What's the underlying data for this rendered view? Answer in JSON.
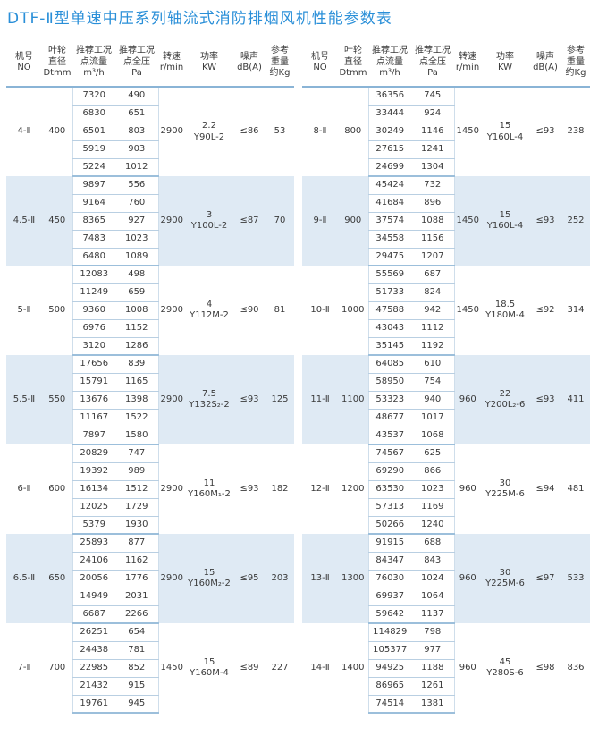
{
  "title": "DTF-Ⅱ型单速中压系列轴流式消防排烟风机性能参数表",
  "headers": {
    "model": "机号\nNO",
    "diameter": "叶轮\n直径\nDtmm",
    "flow": "推荐工况\n点流量\nm³/h",
    "pressure": "推荐工况\n点全压\nPa",
    "speed": "转速\nr/min",
    "power": "功率\nKW",
    "noise": "噪声\ndB(A)",
    "weight": "参考\n重量\n约Kg"
  },
  "left_groups": [
    {
      "model": "4-Ⅱ",
      "diameter": "400",
      "speed": "2900",
      "power": "2.2\nY90L-2",
      "noise": "≤86",
      "weight": "53",
      "rows": [
        [
          "7320",
          "490"
        ],
        [
          "6830",
          "651"
        ],
        [
          "6501",
          "803"
        ],
        [
          "5919",
          "903"
        ],
        [
          "5224",
          "1012"
        ]
      ]
    },
    {
      "model": "4.5-Ⅱ",
      "diameter": "450",
      "speed": "2900",
      "power": "3\nY100L-2",
      "noise": "≤87",
      "weight": "70",
      "rows": [
        [
          "9897",
          "556"
        ],
        [
          "9164",
          "760"
        ],
        [
          "8365",
          "927"
        ],
        [
          "7483",
          "1023"
        ],
        [
          "6480",
          "1089"
        ]
      ]
    },
    {
      "model": "5-Ⅱ",
      "diameter": "500",
      "speed": "2900",
      "power": "4\nY112M-2",
      "noise": "≤90",
      "weight": "81",
      "rows": [
        [
          "12083",
          "498"
        ],
        [
          "11249",
          "659"
        ],
        [
          "9360",
          "1008"
        ],
        [
          "6976",
          "1152"
        ],
        [
          "3120",
          "1286"
        ]
      ]
    },
    {
      "model": "5.5-Ⅱ",
      "diameter": "550",
      "speed": "2900",
      "power": "7.5\nY132S₂-2",
      "noise": "≤93",
      "weight": "125",
      "rows": [
        [
          "17656",
          "839"
        ],
        [
          "15791",
          "1165"
        ],
        [
          "13676",
          "1398"
        ],
        [
          "11167",
          "1522"
        ],
        [
          "7897",
          "1580"
        ]
      ]
    },
    {
      "model": "6-Ⅱ",
      "diameter": "600",
      "speed": "2900",
      "power": "11\nY160M₁-2",
      "noise": "≤93",
      "weight": "182",
      "rows": [
        [
          "20829",
          "747"
        ],
        [
          "19392",
          "989"
        ],
        [
          "16134",
          "1512"
        ],
        [
          "12025",
          "1729"
        ],
        [
          "5379",
          "1930"
        ]
      ]
    },
    {
      "model": "6.5-Ⅱ",
      "diameter": "650",
      "speed": "2900",
      "power": "15\nY160M₂-2",
      "noise": "≤95",
      "weight": "203",
      "rows": [
        [
          "25893",
          "877"
        ],
        [
          "24106",
          "1162"
        ],
        [
          "20056",
          "1776"
        ],
        [
          "14949",
          "2031"
        ],
        [
          "6687",
          "2266"
        ]
      ]
    },
    {
      "model": "7-Ⅱ",
      "diameter": "700",
      "speed": "1450",
      "power": "15\nY160M-4",
      "noise": "≤89",
      "weight": "227",
      "rows": [
        [
          "26251",
          "654"
        ],
        [
          "24438",
          "781"
        ],
        [
          "22985",
          "852"
        ],
        [
          "21432",
          "915"
        ],
        [
          "19761",
          "945"
        ]
      ]
    }
  ],
  "right_groups": [
    {
      "model": "8-Ⅱ",
      "diameter": "800",
      "speed": "1450",
      "power": "15\nY160L-4",
      "noise": "≤93",
      "weight": "238",
      "rows": [
        [
          "36356",
          "745"
        ],
        [
          "33444",
          "924"
        ],
        [
          "30249",
          "1146"
        ],
        [
          "27615",
          "1241"
        ],
        [
          "24699",
          "1304"
        ]
      ]
    },
    {
      "model": "9-Ⅱ",
      "diameter": "900",
      "speed": "1450",
      "power": "15\nY160L-4",
      "noise": "≤93",
      "weight": "252",
      "rows": [
        [
          "45424",
          "732"
        ],
        [
          "41684",
          "896"
        ],
        [
          "37574",
          "1088"
        ],
        [
          "34558",
          "1156"
        ],
        [
          "29475",
          "1207"
        ]
      ]
    },
    {
      "model": "10-Ⅱ",
      "diameter": "1000",
      "speed": "1450",
      "power": "18.5\nY180M-4",
      "noise": "≤92",
      "weight": "314",
      "rows": [
        [
          "55569",
          "687"
        ],
        [
          "51733",
          "824"
        ],
        [
          "47588",
          "942"
        ],
        [
          "43043",
          "1112"
        ],
        [
          "35145",
          "1192"
        ]
      ]
    },
    {
      "model": "11-Ⅱ",
      "diameter": "1100",
      "speed": "960",
      "power": "22\nY200L₂-6",
      "noise": "≤93",
      "weight": "411",
      "rows": [
        [
          "64085",
          "610"
        ],
        [
          "58950",
          "754"
        ],
        [
          "53323",
          "940"
        ],
        [
          "48677",
          "1017"
        ],
        [
          "43537",
          "1068"
        ]
      ]
    },
    {
      "model": "12-Ⅱ",
      "diameter": "1200",
      "speed": "960",
      "power": "30\nY225M-6",
      "noise": "≤94",
      "weight": "481",
      "rows": [
        [
          "74567",
          "625"
        ],
        [
          "69290",
          "866"
        ],
        [
          "63530",
          "1023"
        ],
        [
          "57313",
          "1169"
        ],
        [
          "50266",
          "1240"
        ]
      ]
    },
    {
      "model": "13-Ⅱ",
      "diameter": "1300",
      "speed": "960",
      "power": "30\nY225M-6",
      "noise": "≤97",
      "weight": "533",
      "rows": [
        [
          "91915",
          "688"
        ],
        [
          "84347",
          "843"
        ],
        [
          "76030",
          "1024"
        ],
        [
          "69937",
          "1064"
        ],
        [
          "59642",
          "1137"
        ]
      ]
    },
    {
      "model": "14-Ⅱ",
      "diameter": "1400",
      "speed": "960",
      "power": "45\nY280S-6",
      "noise": "≤98",
      "weight": "836",
      "rows": [
        [
          "114829",
          "798"
        ],
        [
          "105377",
          "977"
        ],
        [
          "94925",
          "1188"
        ],
        [
          "86965",
          "1261"
        ],
        [
          "74514",
          "1381"
        ]
      ]
    }
  ]
}
